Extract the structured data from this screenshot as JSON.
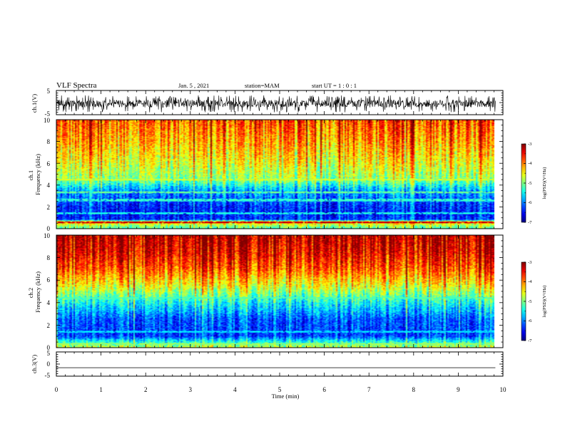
{
  "header": {
    "title": "VLF Spectra",
    "date": "Jan. 5 , 2021",
    "station": "station=MAM",
    "start_ut": "start UT = 1 : 0 : 1"
  },
  "chart_data": [
    {
      "type": "line",
      "name": "ch1-waveform",
      "ylabel": "ch.1(V)",
      "ylim": [
        -5,
        5
      ],
      "yticks": [
        "5",
        "-5"
      ],
      "xlim": [
        0,
        10
      ],
      "data_xlim": [
        0,
        9.83
      ],
      "amplitude_range": [
        -4,
        3
      ],
      "color": "#000000"
    },
    {
      "type": "heatmap",
      "name": "ch1-spectrogram",
      "ylabel": "ch.1\nFrequency (kHz)",
      "ylim": [
        0,
        10
      ],
      "yticks": [
        "0",
        "2",
        "4",
        "6",
        "8",
        "10"
      ],
      "xlim": [
        0,
        10
      ],
      "data_xlim": [
        0,
        9.83
      ],
      "zlim": [
        -7,
        -3
      ],
      "colorbar_label": "log(PSD)(V²/Hz)",
      "colorbar_ticks": [
        "-3",
        "-4",
        "-5",
        "-6",
        "-7"
      ],
      "colormap": "jet",
      "freq_profile": [
        {
          "f": 0.0,
          "z": -5.2
        },
        {
          "f": 0.3,
          "z": -4.8
        },
        {
          "f": 0.6,
          "z": -4.2
        },
        {
          "f": 0.8,
          "z": -6.4
        },
        {
          "f": 2.0,
          "z": -6.4
        },
        {
          "f": 3.5,
          "z": -5.9
        },
        {
          "f": 4.5,
          "z": -5.0
        },
        {
          "f": 6.0,
          "z": -4.6
        },
        {
          "f": 8.0,
          "z": -4.2
        },
        {
          "f": 10.0,
          "z": -3.9
        }
      ],
      "line_interference": [
        {
          "f": 0.55,
          "z": -3.3
        },
        {
          "f": 4.5,
          "z": -4.7
        },
        {
          "f": 3.3,
          "z": -5.1
        },
        {
          "f": 2.6,
          "z": -5.3
        },
        {
          "f": 1.4,
          "z": -5.4
        }
      ]
    },
    {
      "type": "heatmap",
      "name": "ch2-spectrogram",
      "ylabel": "ch.2\nFrequency (kHz)",
      "ylim": [
        0,
        10
      ],
      "yticks": [
        "0",
        "2",
        "4",
        "6",
        "8",
        "10"
      ],
      "xlim": [
        0,
        10
      ],
      "data_xlim": [
        0,
        9.83
      ],
      "zlim": [
        -7,
        -3
      ],
      "colorbar_label": "log(PSD)(V²/Hz)",
      "colorbar_ticks": [
        "-3",
        "-4",
        "-5",
        "-6",
        "-7"
      ],
      "colormap": "jet",
      "freq_profile": [
        {
          "f": 0.0,
          "z": -4.8
        },
        {
          "f": 0.4,
          "z": -5.3
        },
        {
          "f": 1.0,
          "z": -6.3
        },
        {
          "f": 2.5,
          "z": -6.2
        },
        {
          "f": 4.0,
          "z": -5.5
        },
        {
          "f": 5.5,
          "z": -4.6
        },
        {
          "f": 7.0,
          "z": -3.9
        },
        {
          "f": 8.5,
          "z": -3.5
        },
        {
          "f": 10.0,
          "z": -3.3
        }
      ],
      "line_interference": [
        {
          "f": 0.3,
          "z": -4.9
        },
        {
          "f": 4.4,
          "z": -5.2
        },
        {
          "f": 1.4,
          "z": -5.6
        }
      ]
    },
    {
      "type": "line",
      "name": "ch3-waveform",
      "ylabel": "ch.3(V)",
      "ylim": [
        -5,
        5
      ],
      "yticks": [
        "5",
        "0",
        "-5"
      ],
      "xlim": [
        0,
        10
      ],
      "data_xlim": [
        0,
        9.83
      ],
      "constant_value": -1.5,
      "color": "#000000"
    }
  ],
  "xaxis": {
    "label": "Time (min)",
    "ticks": [
      "0",
      "1",
      "2",
      "3",
      "4",
      "5",
      "6",
      "7",
      "8",
      "9",
      "10"
    ]
  }
}
